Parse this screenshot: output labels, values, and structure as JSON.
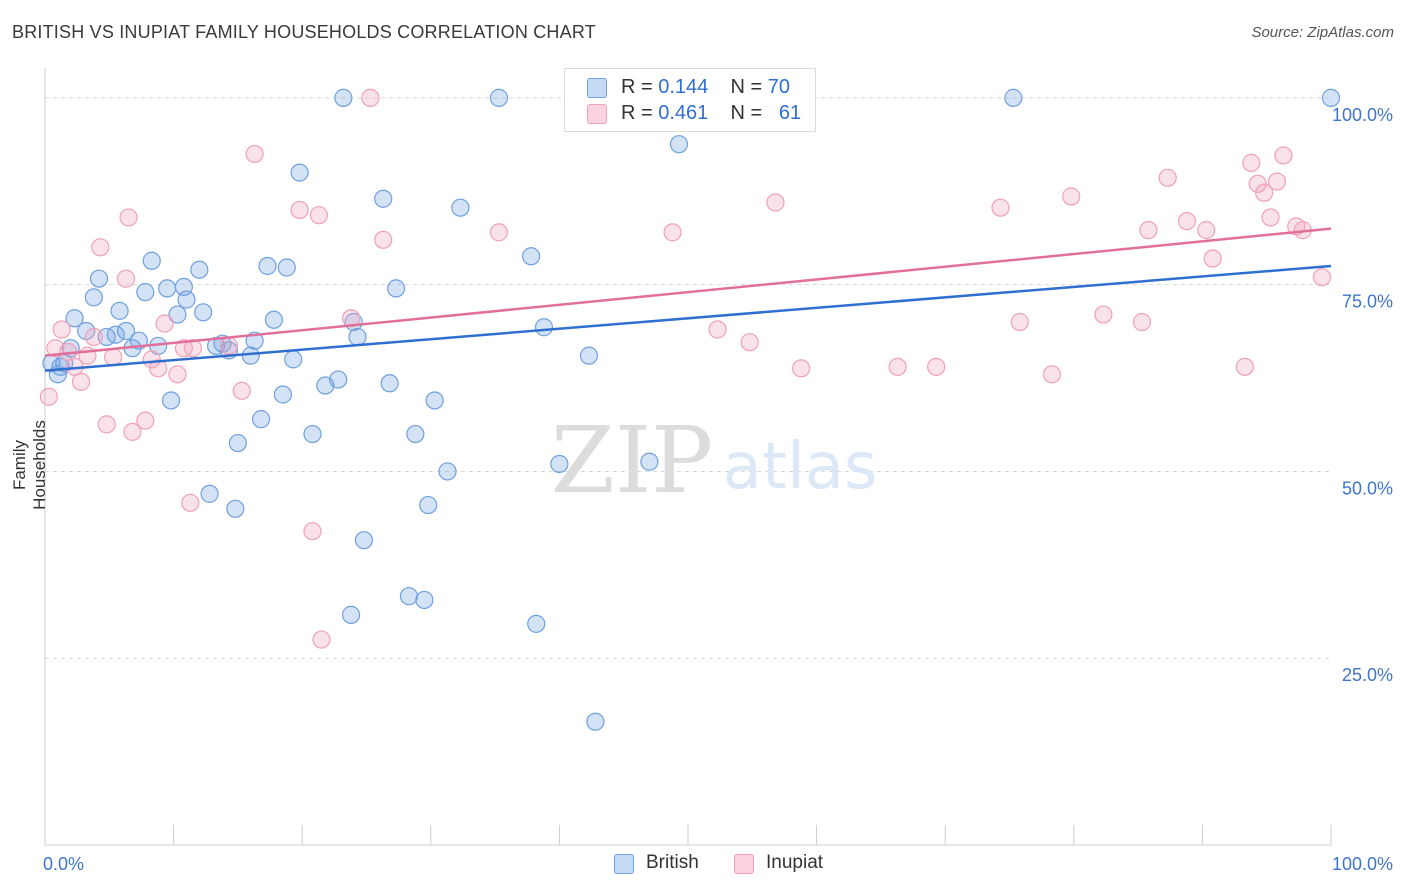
{
  "title": "BRITISH VS INUPIAT FAMILY HOUSEHOLDS CORRELATION CHART",
  "source": "Source: ZipAtlas.com",
  "watermark": {
    "zip": "ZIP",
    "atlas": "atlas"
  },
  "legend": {
    "british": {
      "r_label": "R = ",
      "r_value": "0.144",
      "n_label": "N = ",
      "n_value": "70"
    },
    "inupiat": {
      "r_label": "R = ",
      "r_value": "0.461",
      "n_label": "N = ",
      "n_value": "61"
    }
  },
  "bottom_legend": {
    "british": "British",
    "inupiat": "Inupiat"
  },
  "chart_data": {
    "type": "scatter",
    "title": "BRITISH VS INUPIAT FAMILY HOUSEHOLDS CORRELATION CHART",
    "xlabel": "",
    "ylabel": "Family Households",
    "xlim": [
      0,
      100
    ],
    "ylim": [
      0,
      104
    ],
    "x_tick_labels": {
      "left": "0.0%",
      "right": "100.0%"
    },
    "y_ticks": [
      {
        "value": 25,
        "label": "25.0%"
      },
      {
        "value": 50,
        "label": "50.0%"
      },
      {
        "value": 75,
        "label": "75.0%"
      },
      {
        "value": 100,
        "label": "100.0%"
      }
    ],
    "grid": true,
    "legend_position": "top-center",
    "colors": {
      "british": "#6fa0e0",
      "inupiat": "#f0a0b8",
      "british_line": "#2f6fd0",
      "inupiat_line": "#e0709a"
    },
    "series": [
      {
        "name": "British",
        "r": 0.144,
        "n": 70,
        "trend": [
          [
            0,
            63.5
          ],
          [
            100,
            77.5
          ]
        ],
        "points": [
          [
            0.5,
            64.5
          ],
          [
            1,
            63
          ],
          [
            1.5,
            64.5
          ],
          [
            2,
            66.5
          ],
          [
            2.3,
            70.5
          ],
          [
            3.2,
            68.8
          ],
          [
            3.8,
            73.3
          ],
          [
            4.2,
            75.8
          ],
          [
            4.8,
            68
          ],
          [
            5.5,
            68.3
          ],
          [
            5.8,
            71.5
          ],
          [
            6.3,
            68.8
          ],
          [
            6.8,
            66.5
          ],
          [
            7.3,
            67.5
          ],
          [
            7.8,
            74
          ],
          [
            8.3,
            78.2
          ],
          [
            8.8,
            66.8
          ],
          [
            9.5,
            74.5
          ],
          [
            9.8,
            59.5
          ],
          [
            10.3,
            71
          ],
          [
            10.8,
            74.7
          ],
          [
            11,
            73
          ],
          [
            12,
            77
          ],
          [
            12.3,
            71.3
          ],
          [
            12.8,
            47
          ],
          [
            13.3,
            66.8
          ],
          [
            13.8,
            67.1
          ],
          [
            14.3,
            66.2
          ],
          [
            14.8,
            45
          ],
          [
            15,
            53.8
          ],
          [
            16,
            65.5
          ],
          [
            16.3,
            67.5
          ],
          [
            16.8,
            57
          ],
          [
            17.3,
            77.5
          ],
          [
            17.8,
            70.3
          ],
          [
            18.5,
            60.3
          ],
          [
            18.8,
            77.3
          ],
          [
            19.3,
            65
          ],
          [
            19.8,
            90
          ],
          [
            20.8,
            55
          ],
          [
            21.8,
            61.5
          ],
          [
            22.8,
            62.3
          ],
          [
            23.2,
            100
          ],
          [
            23.8,
            30.8
          ],
          [
            24,
            70
          ],
          [
            24.3,
            68
          ],
          [
            24.8,
            40.8
          ],
          [
            26.3,
            86.5
          ],
          [
            26.8,
            61.8
          ],
          [
            27.3,
            74.5
          ],
          [
            28.3,
            33.3
          ],
          [
            28.8,
            55
          ],
          [
            29.5,
            32.8
          ],
          [
            29.8,
            45.5
          ],
          [
            30.3,
            59.5
          ],
          [
            31.3,
            50
          ],
          [
            32.3,
            85.3
          ],
          [
            35.3,
            100
          ],
          [
            37.8,
            78.8
          ],
          [
            38.8,
            69.3
          ],
          [
            38.2,
            29.6
          ],
          [
            40,
            51
          ],
          [
            42.3,
            65.5
          ],
          [
            42.8,
            16.5
          ],
          [
            47,
            51.3
          ],
          [
            49.3,
            93.8
          ],
          [
            49.8,
            99.8
          ],
          [
            75.3,
            100
          ],
          [
            100,
            100
          ],
          [
            1.2,
            64
          ]
        ]
      },
      {
        "name": "Inupiat",
        "r": 0.461,
        "n": 61,
        "trend": [
          [
            0,
            65.5
          ],
          [
            100,
            82.5
          ]
        ],
        "points": [
          [
            0.3,
            60
          ],
          [
            0.8,
            66.5
          ],
          [
            1.3,
            69
          ],
          [
            1.8,
            66
          ],
          [
            2.3,
            64
          ],
          [
            2.8,
            62
          ],
          [
            3.3,
            65.5
          ],
          [
            3.8,
            68
          ],
          [
            4.3,
            80
          ],
          [
            4.8,
            56.3
          ],
          [
            5.3,
            65.3
          ],
          [
            6.3,
            75.8
          ],
          [
            6.5,
            84
          ],
          [
            6.8,
            55.3
          ],
          [
            7.8,
            56.8
          ],
          [
            8.3,
            65
          ],
          [
            8.8,
            63.8
          ],
          [
            9.3,
            69.8
          ],
          [
            10.3,
            63
          ],
          [
            10.8,
            66.5
          ],
          [
            11.3,
            45.8
          ],
          [
            11.5,
            66.5
          ],
          [
            14.3,
            66.8
          ],
          [
            15.3,
            60.8
          ],
          [
            16.3,
            92.5
          ],
          [
            19.8,
            85
          ],
          [
            20.8,
            42
          ],
          [
            21.3,
            84.3
          ],
          [
            21.5,
            27.5
          ],
          [
            23.8,
            70.5
          ],
          [
            25.3,
            100
          ],
          [
            26.3,
            81
          ],
          [
            35.3,
            82
          ],
          [
            48.8,
            82
          ],
          [
            52.3,
            69
          ],
          [
            54.8,
            67.3
          ],
          [
            56.8,
            86
          ],
          [
            58.8,
            63.8
          ],
          [
            66.3,
            64
          ],
          [
            69.3,
            64
          ],
          [
            74.3,
            85.3
          ],
          [
            75.8,
            70
          ],
          [
            78.3,
            63
          ],
          [
            79.8,
            86.8
          ],
          [
            82.3,
            71
          ],
          [
            85.3,
            70
          ],
          [
            85.8,
            82.3
          ],
          [
            87.3,
            89.3
          ],
          [
            88.8,
            83.5
          ],
          [
            90.3,
            82.3
          ],
          [
            90.8,
            78.5
          ],
          [
            93.8,
            91.3
          ],
          [
            93.3,
            64
          ],
          [
            94.3,
            88.5
          ],
          [
            94.8,
            87.3
          ],
          [
            95.3,
            84
          ],
          [
            95.8,
            88.8
          ],
          [
            96.3,
            92.3
          ],
          [
            97.3,
            82.8
          ],
          [
            97.8,
            82.3
          ],
          [
            99.3,
            76
          ]
        ]
      }
    ]
  }
}
